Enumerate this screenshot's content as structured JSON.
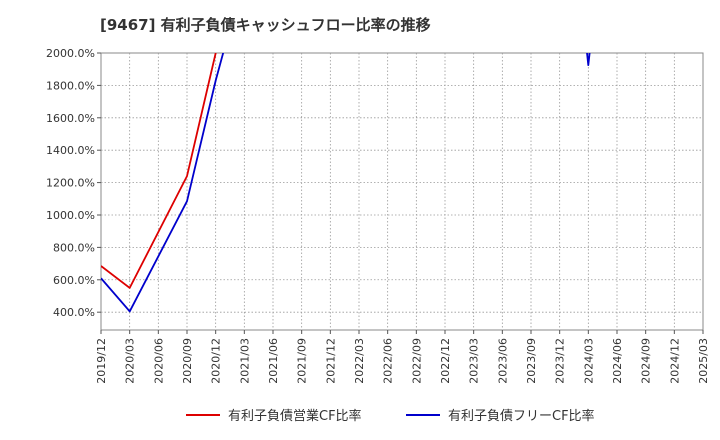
{
  "chart_data": {
    "type": "line",
    "title": "[9467]  有利子負債キャッシュフロー比率の推移",
    "xlabel": "",
    "ylabel": "",
    "ylim": [
      290,
      2000
    ],
    "y_ticks": [
      "400.0%",
      "600.0%",
      "800.0%",
      "1000.0%",
      "1200.0%",
      "1400.0%",
      "1600.0%",
      "1800.0%",
      "2000.0%"
    ],
    "y_tick_values": [
      400,
      600,
      800,
      1000,
      1200,
      1400,
      1600,
      1800,
      2000
    ],
    "categories": [
      "2019/12",
      "2020/03",
      "2020/06",
      "2020/09",
      "2020/12",
      "2021/03",
      "2021/06",
      "2021/09",
      "2021/12",
      "2022/03",
      "2022/06",
      "2022/09",
      "2022/12",
      "2023/03",
      "2023/06",
      "2023/09",
      "2023/12",
      "2024/03",
      "2024/06",
      "2024/09",
      "2024/12",
      "2025/03"
    ],
    "grid": true,
    "legend_position": "bottom",
    "series": [
      {
        "name": "有利子負債営業CF比率",
        "color": "#dd0000",
        "points": [
          {
            "x": 0,
            "y": 685
          },
          {
            "x": 1,
            "y": 550
          },
          {
            "x": 3,
            "y": 1240
          },
          {
            "x": 4,
            "y": 2000
          },
          {
            "x": 4.15,
            "y": 2090
          }
        ]
      },
      {
        "name": "有利子負債フリーCF比率",
        "color": "#0000cc",
        "points": [
          {
            "x": 0,
            "y": 610
          },
          {
            "x": 1,
            "y": 405
          },
          {
            "x": 3,
            "y": 1085
          },
          {
            "x": 4,
            "y": 1830
          },
          {
            "x": 4.4,
            "y": 2090
          }
        ],
        "extra_segments": [
          [
            {
              "x": 16.9,
              "y": 2090
            },
            {
              "x": 17,
              "y": 1925
            },
            {
              "x": 17.1,
              "y": 2090
            }
          ]
        ]
      }
    ]
  }
}
